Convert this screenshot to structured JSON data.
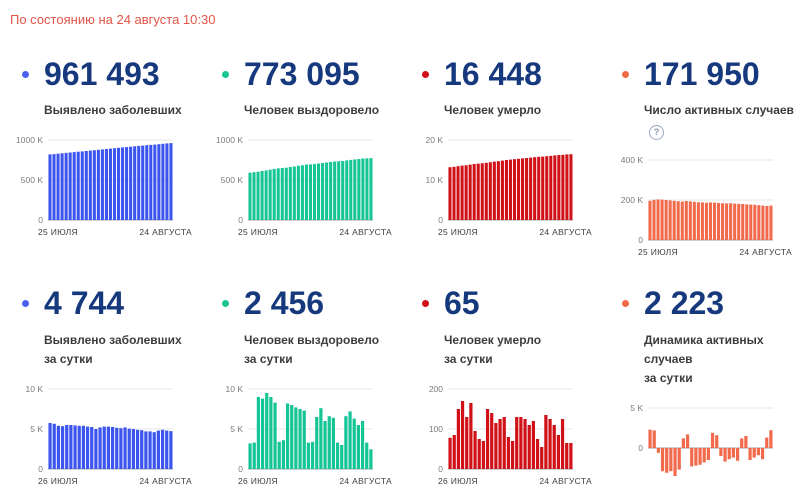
{
  "header": {
    "as_of": "По состоянию на 24 августа 10:30",
    "accent_color": "#e25548"
  },
  "panels": [
    {
      "id": "confirmed-total",
      "value": "961 493",
      "label1": "Выявлено заболевших",
      "label2": "",
      "accent": "#4c60ef",
      "chart_index": 0
    },
    {
      "id": "recovered-total",
      "value": "773 095",
      "label1": "Человек выздоровело",
      "label2": "",
      "accent": "#1ac493",
      "chart_index": 1
    },
    {
      "id": "deaths-total",
      "value": "16 448",
      "label1": "Человек умерло",
      "label2": "",
      "accent": "#d01117",
      "chart_index": 2
    },
    {
      "id": "active-total",
      "value": "171 950",
      "label1": "Число активных случаев",
      "label2": "",
      "accent": "#ef6a47",
      "help_glyph": "?",
      "chart_index": 3
    },
    {
      "id": "confirmed-daily",
      "value": "4 744",
      "label1": "Выявлено заболевших",
      "label2": "за сутки",
      "accent": "#4c60ef",
      "chart_index": 4
    },
    {
      "id": "recovered-daily",
      "value": "2 456",
      "label1": "Человек выздоровело",
      "label2": "за сутки",
      "accent": "#1ac493",
      "chart_index": 5
    },
    {
      "id": "deaths-daily",
      "value": "65",
      "label1": "Человек умерло",
      "label2": "за сутки",
      "accent": "#d01117",
      "chart_index": 6
    },
    {
      "id": "active-dynamics",
      "value": "2 223",
      "label1": "Динамика активных случаев",
      "label2": "за сутки",
      "accent": "#ef6a47",
      "chart_index": 7
    }
  ],
  "chart_data": [
    {
      "type": "bar",
      "title": "Выявлено заболевших",
      "color": "#3d55ef",
      "unit": "thousands",
      "ymin": 0,
      "ymax": 1000,
      "grid": true,
      "legend": "none",
      "ticks": [
        {
          "label": "1000 K",
          "value": 1000
        },
        {
          "label": "500 K",
          "value": 500
        },
        {
          "label": "0",
          "value": 0
        }
      ],
      "x_start": "25 ИЮЛЯ",
      "x_end": "24 АВГУСТА",
      "values": [
        820,
        824,
        829,
        834,
        839,
        844,
        849,
        854,
        858,
        863,
        868,
        873,
        878,
        883,
        887,
        892,
        897,
        902,
        907,
        911,
        916,
        921,
        926,
        930,
        935,
        939,
        943,
        948,
        952,
        957,
        961
      ]
    },
    {
      "type": "bar",
      "title": "Человек выздоровело",
      "color": "#16c595",
      "unit": "thousands",
      "ymin": 0,
      "ymax": 1000,
      "grid": true,
      "legend": "none",
      "ticks": [
        {
          "label": "1000 K",
          "value": 1000
        },
        {
          "label": "500 K",
          "value": 500
        },
        {
          "label": "0",
          "value": 0
        }
      ],
      "x_start": "25 ИЮЛЯ",
      "x_end": "24 АВГУСТА",
      "values": [
        591,
        597,
        603,
        612,
        620,
        629,
        638,
        646,
        650,
        654,
        662,
        669,
        677,
        684,
        692,
        695,
        699,
        706,
        712,
        719,
        725,
        731,
        735,
        738,
        745,
        751,
        757,
        763,
        769,
        771,
        773
      ]
    },
    {
      "type": "bar",
      "title": "Человек умерло",
      "color": "#d01117",
      "unit": "thousands",
      "ymin": 0,
      "ymax": 20,
      "grid": true,
      "legend": "none",
      "ticks": [
        {
          "label": "20 K",
          "value": 20
        },
        {
          "label": "10 K",
          "value": 10
        },
        {
          "label": "0",
          "value": 0
        }
      ],
      "x_start": "25 ИЮЛЯ",
      "x_end": "24 АВГУСТА",
      "values": [
        13.2,
        13.3,
        13.45,
        13.6,
        13.7,
        13.85,
        14.0,
        14.1,
        14.2,
        14.3,
        14.45,
        14.6,
        14.7,
        14.85,
        15.0,
        15.1,
        15.2,
        15.3,
        15.4,
        15.5,
        15.6,
        15.7,
        15.8,
        15.85,
        15.95,
        16.05,
        16.15,
        16.25,
        16.3,
        16.4,
        16.45
      ]
    },
    {
      "type": "bar",
      "title": "Число активных случаев",
      "color": "#f16a4c",
      "unit": "thousands",
      "ymin": 0,
      "ymax": 400,
      "grid": true,
      "legend": "none",
      "ticks": [
        {
          "label": "400 K",
          "value": 400
        },
        {
          "label": "200 K",
          "value": 200
        },
        {
          "label": "0",
          "value": 0
        }
      ],
      "x_start": "25 ИЮЛЯ",
      "x_end": "24 АВГУСТА",
      "values": [
        196,
        201,
        203,
        202,
        200,
        198,
        196,
        194,
        192,
        195,
        193,
        191,
        189,
        188,
        186,
        188,
        187,
        185,
        184,
        183,
        184,
        182,
        181,
        180,
        178,
        177,
        176,
        174,
        172,
        170,
        172
      ]
    },
    {
      "type": "bar",
      "title": "Выявлено заболевших за сутки",
      "color": "#3d55ef",
      "unit": "thousands",
      "ymin": 0,
      "ymax": 10,
      "grid": true,
      "legend": "none",
      "ticks": [
        {
          "label": "10 K",
          "value": 10
        },
        {
          "label": "5 K",
          "value": 5
        },
        {
          "label": "0",
          "value": 0
        }
      ],
      "x_start": "26 ИЮЛЯ",
      "x_end": "24 АВГУСТА",
      "values": [
        5.75,
        5.65,
        5.4,
        5.35,
        5.5,
        5.5,
        5.45,
        5.4,
        5.4,
        5.3,
        5.25,
        5.0,
        5.2,
        5.3,
        5.3,
        5.25,
        5.15,
        5.1,
        5.2,
        5.05,
        5.0,
        4.9,
        4.85,
        4.7,
        4.7,
        4.6,
        4.8,
        4.9,
        4.8,
        4.74
      ]
    },
    {
      "type": "bar",
      "title": "Человек выздоровело за сутки",
      "color": "#16c595",
      "unit": "thousands",
      "ymin": 0,
      "ymax": 10,
      "grid": true,
      "legend": "none",
      "ticks": [
        {
          "label": "10 K",
          "value": 10
        },
        {
          "label": "5 K",
          "value": 5
        },
        {
          "label": "0",
          "value": 0
        }
      ],
      "x_start": "26 ИЮЛЯ",
      "x_end": "24 АВГУСТА",
      "values": [
        3.2,
        3.3,
        9.0,
        8.8,
        9.5,
        9.0,
        8.3,
        3.4,
        3.6,
        8.2,
        8.0,
        7.7,
        7.5,
        7.3,
        3.3,
        3.4,
        6.5,
        7.6,
        6.0,
        6.6,
        6.4,
        3.3,
        3.0,
        6.6,
        7.2,
        6.3,
        5.5,
        6.0,
        3.3,
        2.46
      ]
    },
    {
      "type": "bar",
      "title": "Человек умерло за сутки",
      "color": "#d01117",
      "unit": "count",
      "ymin": 0,
      "ymax": 200,
      "grid": true,
      "legend": "none",
      "ticks": [
        {
          "label": "200",
          "value": 200
        },
        {
          "label": "100",
          "value": 100
        },
        {
          "label": "0",
          "value": 0
        }
      ],
      "x_start": "26 ИЮЛЯ",
      "x_end": "24 АВГУСТА",
      "values": [
        78,
        85,
        150,
        170,
        130,
        165,
        95,
        75,
        70,
        150,
        140,
        115,
        125,
        130,
        80,
        70,
        130,
        130,
        125,
        110,
        120,
        75,
        55,
        135,
        125,
        110,
        85,
        125,
        65,
        65
      ]
    },
    {
      "type": "bar",
      "title": "Динамика активных случаев за сутки",
      "color": "#f16a4c",
      "unit": "thousands",
      "ymin": -5,
      "ymax": 5,
      "grid": true,
      "legend": "none",
      "ticks": [
        {
          "label": "5 K",
          "value": 5
        },
        {
          "label": "0",
          "value": 0
        }
      ],
      "x_start": "26 ИЮЛЯ",
      "x_end": "24 АВГУСТА",
      "values": [
        2.3,
        2.2,
        -0.6,
        -2.9,
        -3.1,
        -2.9,
        -3.5,
        -2.7,
        1.2,
        1.7,
        -2.3,
        -2.2,
        -2.1,
        -1.8,
        -1.5,
        1.9,
        1.6,
        -1.0,
        -1.7,
        -1.4,
        -1.2,
        -1.6,
        1.2,
        1.5,
        -1.5,
        -1.2,
        -0.9,
        -1.4,
        1.3,
        2.22
      ]
    }
  ]
}
